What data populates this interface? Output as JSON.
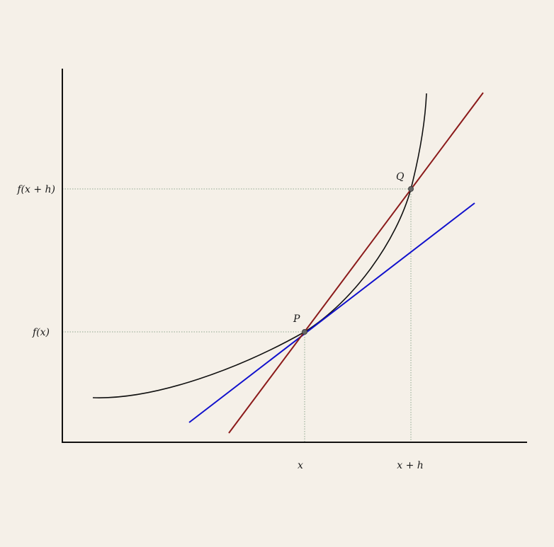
{
  "diagram": {
    "tick_labels": {
      "x": "x",
      "x_plus_h": "x + h",
      "fx": "f(x)",
      "fxh": "f(x + h)"
    },
    "points": {
      "p": "P",
      "q": "Q"
    },
    "colors": {
      "background": "#f5f0e8",
      "axis": "#111111",
      "curve": "#111111",
      "secant": "#8b1a1a",
      "tangent": "#1010cc",
      "guide": "#8fa88f",
      "point": "#666666"
    }
  }
}
